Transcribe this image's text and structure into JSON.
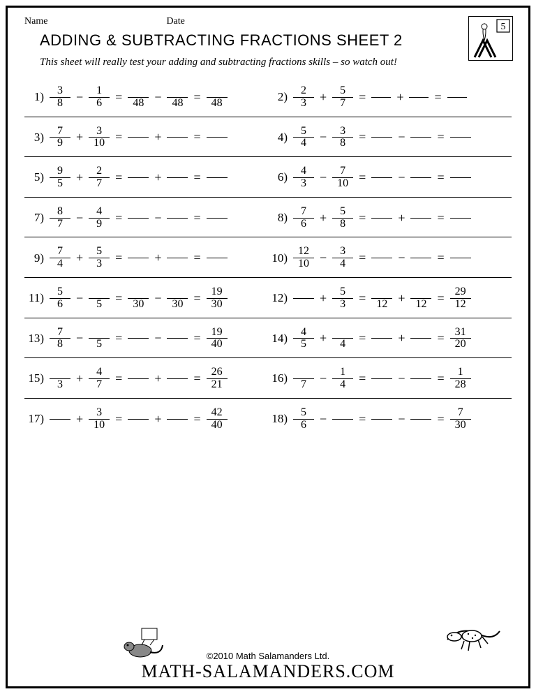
{
  "header": {
    "name_label": "Name",
    "date_label": "Date"
  },
  "title": "ADDING & SUBTRACTING FRACTIONS SHEET 2",
  "subtitle": "This sheet will really test your adding and subtracting fractions skills – so watch out!",
  "badge_number": "5",
  "footer": {
    "copyright": "©2010 Math Salamanders Ltd.",
    "site": "MATH-SALAMANDERS.COM"
  },
  "problems": [
    {
      "num": "1)",
      "a": {
        "n": "3",
        "d": "8"
      },
      "op": "−",
      "b": {
        "n": "1",
        "d": "6"
      },
      "r1": {
        "n": "",
        "d": "48",
        "mode": "blanknum"
      },
      "r2": {
        "n": "",
        "d": "48",
        "mode": "blanknum"
      },
      "r3": {
        "n": "",
        "d": "48",
        "mode": "blanknum"
      }
    },
    {
      "num": "2)",
      "a": {
        "n": "2",
        "d": "3"
      },
      "op": "+",
      "b": {
        "n": "5",
        "d": "7"
      },
      "r1": {
        "mode": "line"
      },
      "r2": {
        "mode": "line"
      },
      "r3": {
        "mode": "line"
      }
    },
    {
      "num": "3)",
      "a": {
        "n": "7",
        "d": "9"
      },
      "op": "+",
      "b": {
        "n": "3",
        "d": "10"
      },
      "r1": {
        "mode": "blank"
      },
      "r2": {
        "mode": "blank"
      },
      "r3": {
        "mode": "blank"
      }
    },
    {
      "num": "4)",
      "a": {
        "n": "5",
        "d": "4"
      },
      "op": "−",
      "b": {
        "n": "3",
        "d": "8"
      },
      "r1": {
        "mode": "blank"
      },
      "r2": {
        "mode": "blank"
      },
      "r3": {
        "mode": "blank"
      }
    },
    {
      "num": "5)",
      "a": {
        "n": "9",
        "d": "5"
      },
      "op": "+",
      "b": {
        "n": "2",
        "d": "7"
      },
      "r1": {
        "mode": "blank"
      },
      "r2": {
        "mode": "blank"
      },
      "r3": {
        "mode": "blank"
      }
    },
    {
      "num": "6)",
      "a": {
        "n": "4",
        "d": "3"
      },
      "op": "−",
      "b": {
        "n": "7",
        "d": "10"
      },
      "r1": {
        "mode": "blank"
      },
      "r2": {
        "mode": "blank"
      },
      "r3": {
        "mode": "blank"
      }
    },
    {
      "num": "7)",
      "a": {
        "n": "8",
        "d": "7"
      },
      "op": "−",
      "b": {
        "n": "4",
        "d": "9"
      },
      "r1": {
        "mode": "blank"
      },
      "r2": {
        "mode": "blank"
      },
      "r3": {
        "mode": "blank"
      }
    },
    {
      "num": "8)",
      "a": {
        "n": "7",
        "d": "6"
      },
      "op": "+",
      "b": {
        "n": "5",
        "d": "8"
      },
      "r1": {
        "mode": "blank"
      },
      "r2": {
        "mode": "blank"
      },
      "r3": {
        "mode": "blank"
      }
    },
    {
      "num": "9)",
      "a": {
        "n": "7",
        "d": "4"
      },
      "op": "+",
      "b": {
        "n": "5",
        "d": "3"
      },
      "r1": {
        "mode": "blank"
      },
      "r2": {
        "mode": "blank"
      },
      "r3": {
        "mode": "blank"
      }
    },
    {
      "num": "10)",
      "a": {
        "n": "12",
        "d": "10"
      },
      "op": "−",
      "b": {
        "n": "3",
        "d": "4"
      },
      "r1": {
        "mode": "blank"
      },
      "r2": {
        "mode": "blank"
      },
      "r3": {
        "mode": "blank"
      }
    },
    {
      "num": "11)",
      "a": {
        "n": "5",
        "d": "6"
      },
      "op": "−",
      "b": {
        "n": "",
        "d": "5",
        "mode": "blanknum"
      },
      "r1": {
        "n": "",
        "d": "30",
        "mode": "blanknum"
      },
      "r2": {
        "n": "",
        "d": "30",
        "mode": "blanknum"
      },
      "r3": {
        "n": "19",
        "d": "30"
      }
    },
    {
      "num": "12)",
      "a": {
        "n": "",
        "d": "",
        "mode": "blank"
      },
      "op": "+",
      "b": {
        "n": "5",
        "d": "3"
      },
      "r1": {
        "n": "",
        "d": "12",
        "mode": "blanknum"
      },
      "r2": {
        "n": "",
        "d": "12",
        "mode": "blanknum"
      },
      "r3": {
        "n": "29",
        "d": "12"
      }
    },
    {
      "num": "13)",
      "a": {
        "n": "7",
        "d": "8"
      },
      "op": "−",
      "b": {
        "n": "",
        "d": "5",
        "mode": "blanknum"
      },
      "r1": {
        "mode": "blank"
      },
      "r2": {
        "mode": "blank"
      },
      "r3": {
        "n": "19",
        "d": "40"
      }
    },
    {
      "num": "14)",
      "a": {
        "n": "4",
        "d": "5"
      },
      "op": "+",
      "b": {
        "n": "",
        "d": "4",
        "mode": "blanknum"
      },
      "r1": {
        "mode": "blank"
      },
      "r2": {
        "mode": "blank"
      },
      "r3": {
        "n": "31",
        "d": "20"
      }
    },
    {
      "num": "15)",
      "a": {
        "n": "",
        "d": "3",
        "mode": "blanknum"
      },
      "op": "+",
      "b": {
        "n": "4",
        "d": "7"
      },
      "r1": {
        "mode": "blank"
      },
      "r2": {
        "mode": "blank"
      },
      "r3": {
        "n": "26",
        "d": "21"
      }
    },
    {
      "num": "16)",
      "a": {
        "n": "",
        "d": "7",
        "mode": "blanknum"
      },
      "op": "−",
      "b": {
        "n": "1",
        "d": "4"
      },
      "r1": {
        "mode": "blank"
      },
      "r2": {
        "mode": "blank"
      },
      "r3": {
        "n": "1",
        "d": "28"
      }
    },
    {
      "num": "17)",
      "a": {
        "n": "",
        "d": "",
        "mode": "blank"
      },
      "op": "+",
      "b": {
        "n": "3",
        "d": "10"
      },
      "r1": {
        "mode": "blank"
      },
      "r2": {
        "mode": "blank"
      },
      "r3": {
        "n": "42",
        "d": "40"
      }
    },
    {
      "num": "18)",
      "a": {
        "n": "5",
        "d": "6"
      },
      "op": "−",
      "b": {
        "n": "",
        "d": "",
        "mode": "blank"
      },
      "r1": {
        "mode": "blank"
      },
      "r2": {
        "mode": "blank"
      },
      "r3": {
        "n": "7",
        "d": "30"
      }
    }
  ]
}
